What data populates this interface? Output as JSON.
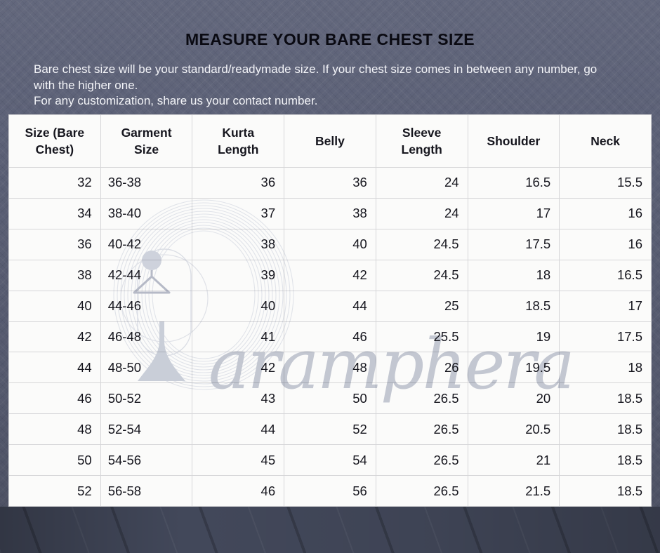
{
  "header": {
    "title": "MEASURE YOUR BARE CHEST SIZE",
    "description_1": "Bare chest size will be your standard/readymade size. If your chest size comes in between any number, go with the higher one.",
    "description_2": "For any customization, share us your contact number."
  },
  "watermark": {
    "text": "aramphera"
  },
  "colors": {
    "background_wall": "#5b6076",
    "background_floor": "#454b5e",
    "table_background": "#fbfbfa",
    "table_border": "#d6d6d8",
    "title_text": "#0a0a12",
    "description_text": "#f3f4f8",
    "cell_text": "#16161e",
    "watermark": "#c6cad5"
  },
  "chart_data": {
    "type": "table",
    "title": "MEASURE YOUR BARE CHEST SIZE",
    "columns": [
      "Size (Bare Chest)",
      "Garment Size",
      "Kurta Length",
      "Belly",
      "Sleeve Length",
      "Shoulder",
      "Neck"
    ],
    "rows": [
      [
        32,
        "36-38",
        36,
        36,
        24,
        16.5,
        15.5
      ],
      [
        34,
        "38-40",
        37,
        38,
        24,
        17,
        16
      ],
      [
        36,
        "40-42",
        38,
        40,
        24.5,
        17.5,
        16
      ],
      [
        38,
        "42-44",
        39,
        42,
        24.5,
        18,
        16.5
      ],
      [
        40,
        "44-46",
        40,
        44,
        25,
        18.5,
        17
      ],
      [
        42,
        "46-48",
        41,
        46,
        25.5,
        19,
        17.5
      ],
      [
        44,
        "48-50",
        42,
        48,
        26,
        19.5,
        18
      ],
      [
        46,
        "50-52",
        43,
        50,
        26.5,
        20,
        18.5
      ],
      [
        48,
        "52-54",
        44,
        52,
        26.5,
        20.5,
        18.5
      ],
      [
        50,
        "54-56",
        45,
        54,
        26.5,
        21,
        18.5
      ],
      [
        52,
        "56-58",
        46,
        56,
        26.5,
        21.5,
        18.5
      ]
    ]
  }
}
